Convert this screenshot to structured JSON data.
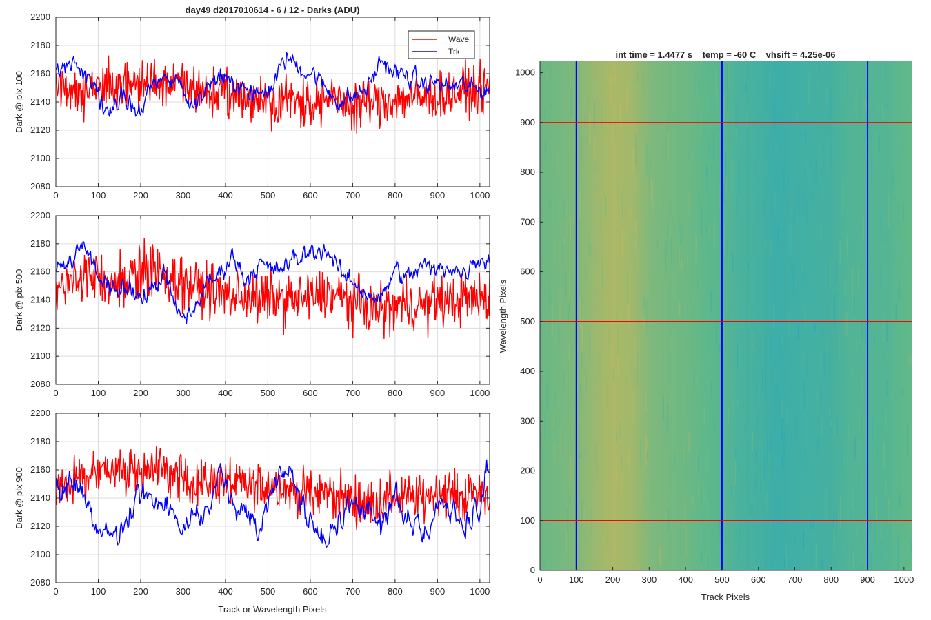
{
  "figure": {
    "left_title": "day49 d2017010614 - 6 / 12 - Darks (ADU)",
    "left_xlabel": "Track or Wavelength Pixels",
    "right_title": "int time = 1.4477 s    temp = -60 C    vhsift = 4.25e-06",
    "right_xlabel": "Track Pixels",
    "right_ylabel": "Wavelength Pixels"
  },
  "colors": {
    "wave": "#ff0000",
    "trk": "#0000ff",
    "img_base": "#5fb88a",
    "img_warm": "#c8b85a",
    "img_cool": "#1aa3c8"
  },
  "chart_data": [
    {
      "type": "line",
      "title": "day49 d2017010614 - 6 / 12 - Darks (ADU)",
      "xlabel": "",
      "ylabel": "Dark @ pix 100",
      "xlim": [
        0,
        1023
      ],
      "ylim": [
        2080,
        2200
      ],
      "xticks": [
        0,
        100,
        200,
        300,
        400,
        500,
        600,
        700,
        800,
        900,
        1000
      ],
      "yticks": [
        2080,
        2100,
        2120,
        2140,
        2160,
        2180,
        2200
      ],
      "grid": true,
      "legend": "top-right",
      "x": [
        0,
        32,
        64,
        96,
        128,
        160,
        192,
        224,
        256,
        288,
        320,
        352,
        384,
        416,
        448,
        480,
        512,
        544,
        576,
        608,
        640,
        672,
        704,
        736,
        768,
        800,
        832,
        864,
        896,
        928,
        960,
        992,
        1023
      ],
      "series": [
        {
          "name": "Wave",
          "color": "#ff0000",
          "noise": 11,
          "values": [
            2152,
            2150,
            2148,
            2150,
            2152,
            2150,
            2152,
            2154,
            2152,
            2152,
            2150,
            2148,
            2146,
            2144,
            2143,
            2142,
            2141,
            2142,
            2140,
            2140,
            2142,
            2140,
            2138,
            2140,
            2140,
            2142,
            2143,
            2142,
            2144,
            2145,
            2148,
            2148,
            2150
          ]
        },
        {
          "name": "Trk",
          "color": "#0000ff",
          "noise": 3,
          "values": [
            2162,
            2168,
            2158,
            2150,
            2128,
            2145,
            2130,
            2150,
            2155,
            2158,
            2136,
            2150,
            2158,
            2152,
            2148,
            2144,
            2152,
            2172,
            2164,
            2160,
            2148,
            2140,
            2144,
            2150,
            2170,
            2160,
            2158,
            2152,
            2154,
            2150,
            2152,
            2148,
            2150
          ]
        }
      ]
    },
    {
      "type": "line",
      "title": "",
      "xlabel": "",
      "ylabel": "Dark @ pix 500",
      "xlim": [
        0,
        1023
      ],
      "ylim": [
        2080,
        2200
      ],
      "xticks": [
        0,
        100,
        200,
        300,
        400,
        500,
        600,
        700,
        800,
        900,
        1000
      ],
      "yticks": [
        2080,
        2100,
        2120,
        2140,
        2160,
        2180,
        2200
      ],
      "grid": true,
      "legend": "none",
      "x": [
        0,
        32,
        64,
        96,
        128,
        160,
        192,
        224,
        256,
        288,
        320,
        352,
        384,
        416,
        448,
        480,
        512,
        544,
        576,
        608,
        640,
        672,
        704,
        736,
        768,
        800,
        832,
        864,
        896,
        928,
        960,
        992,
        1023
      ],
      "series": [
        {
          "name": "Wave",
          "color": "#ff0000",
          "noise": 12,
          "values": [
            2145,
            2152,
            2158,
            2155,
            2152,
            2156,
            2160,
            2160,
            2158,
            2155,
            2150,
            2148,
            2145,
            2142,
            2143,
            2140,
            2142,
            2140,
            2140,
            2142,
            2145,
            2142,
            2138,
            2135,
            2132,
            2135,
            2138,
            2135,
            2140,
            2138,
            2142,
            2140,
            2142
          ]
        },
        {
          "name": "Trk",
          "color": "#0000ff",
          "noise": 3,
          "values": [
            2160,
            2168,
            2178,
            2160,
            2150,
            2148,
            2140,
            2146,
            2160,
            2128,
            2130,
            2150,
            2158,
            2172,
            2155,
            2166,
            2160,
            2165,
            2170,
            2175,
            2176,
            2158,
            2152,
            2145,
            2140,
            2162,
            2155,
            2165,
            2160,
            2165,
            2158,
            2170,
            2168
          ]
        }
      ]
    },
    {
      "type": "line",
      "title": "",
      "xlabel": "Track or Wavelength Pixels",
      "ylabel": "Dark @ pix 900",
      "xlim": [
        0,
        1023
      ],
      "ylim": [
        2080,
        2200
      ],
      "xticks": [
        0,
        100,
        200,
        300,
        400,
        500,
        600,
        700,
        800,
        900,
        1000
      ],
      "yticks": [
        2080,
        2100,
        2120,
        2140,
        2160,
        2180,
        2200
      ],
      "grid": true,
      "legend": "none",
      "x": [
        0,
        32,
        64,
        96,
        128,
        160,
        192,
        224,
        256,
        288,
        320,
        352,
        384,
        416,
        448,
        480,
        512,
        544,
        576,
        608,
        640,
        672,
        704,
        736,
        768,
        800,
        832,
        864,
        896,
        928,
        960,
        992,
        1023
      ],
      "series": [
        {
          "name": "Wave",
          "color": "#ff0000",
          "noise": 11,
          "values": [
            2150,
            2152,
            2155,
            2158,
            2160,
            2158,
            2160,
            2162,
            2158,
            2155,
            2152,
            2150,
            2152,
            2150,
            2148,
            2148,
            2150,
            2146,
            2144,
            2142,
            2145,
            2140,
            2138,
            2135,
            2138,
            2142,
            2140,
            2140,
            2145,
            2143,
            2140,
            2145,
            2142
          ]
        },
        {
          "name": "Trk",
          "color": "#0000ff",
          "noise": 4,
          "values": [
            2145,
            2150,
            2142,
            2120,
            2112,
            2115,
            2140,
            2145,
            2140,
            2118,
            2122,
            2130,
            2155,
            2142,
            2125,
            2118,
            2150,
            2162,
            2140,
            2118,
            2110,
            2130,
            2135,
            2125,
            2120,
            2140,
            2130,
            2110,
            2140,
            2135,
            2120,
            2128,
            2165
          ]
        }
      ]
    },
    {
      "type": "heatmap",
      "title": "int time = 1.4477 s    temp = -60 C    vhsift = 4.25e-06",
      "xlabel": "Track Pixels",
      "ylabel": "Wavelength Pixels",
      "xlim": [
        0,
        1023
      ],
      "ylim": [
        0,
        1023
      ],
      "xticks": [
        0,
        100,
        200,
        300,
        400,
        500,
        600,
        700,
        800,
        900,
        1000
      ],
      "yticks": [
        0,
        100,
        200,
        300,
        400,
        500,
        600,
        700,
        800,
        900,
        1000
      ],
      "column_profile": {
        "x": [
          0,
          50,
          100,
          150,
          200,
          250,
          300,
          350,
          400,
          450,
          500,
          550,
          600,
          650,
          700,
          750,
          800,
          850,
          900,
          950,
          1000,
          1023
        ],
        "level": [
          0.55,
          0.6,
          0.65,
          0.78,
          0.86,
          0.82,
          0.66,
          0.6,
          0.57,
          0.5,
          0.45,
          0.35,
          0.32,
          0.25,
          0.28,
          0.3,
          0.32,
          0.4,
          0.42,
          0.42,
          0.5,
          0.52
        ]
      },
      "markers": {
        "vertical_lines": {
          "color": "#0000ff",
          "x": [
            100,
            500,
            900
          ]
        },
        "horizontal_lines": {
          "color": "#ff0000",
          "y": [
            100,
            500,
            900
          ]
        }
      }
    }
  ]
}
